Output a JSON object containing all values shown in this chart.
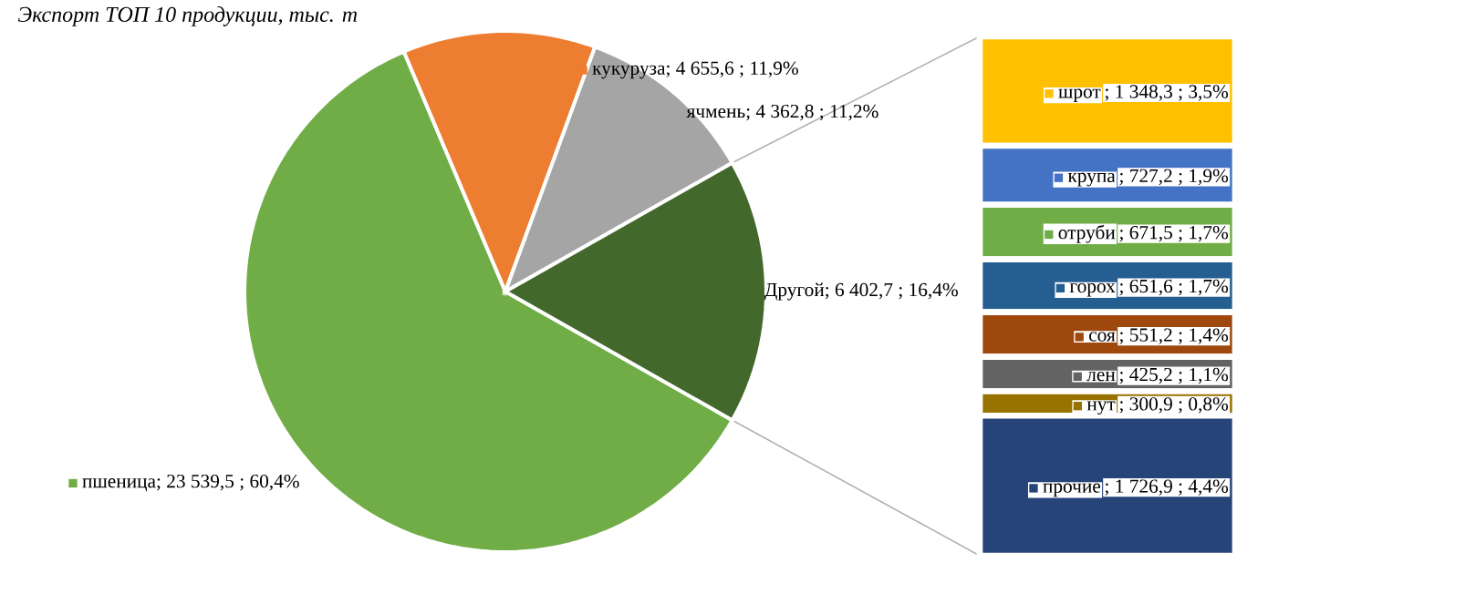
{
  "chart_data": [
    {
      "type": "pie",
      "title": "Экспорт ТОП 10 продукции, тыс. т",
      "categories": [
        "пшеница",
        "кукуруза",
        "ячмень",
        "Другой"
      ],
      "values": [
        23539.5,
        4655.6,
        4362.8,
        6402.7
      ],
      "colors": [
        "#70ad47",
        "#ed7d31",
        "#a5a5a5",
        "#43682b"
      ],
      "value_labels": [
        "; 23 539,5 ; 60,4%",
        "; 4 655,6 ; 11,9%",
        "; 4 362,8 ; 11,2%",
        "; 6 402,7 ; 16,4%"
      ],
      "legend": "left"
    },
    {
      "type": "bar",
      "stacked": true,
      "legend": "top left",
      "categories": [
        null
      ],
      "series": [
        {
          "name": "прочие",
          "color": "#264478",
          "values": [
            1726.9
          ],
          "value_labels": [
            "; 1 726,9 ; 4,4%"
          ]
        },
        {
          "name": "нут",
          "color": "#997300",
          "values": [
            300.9
          ],
          "value_labels": [
            "; 300,9 ; 0,8%"
          ]
        },
        {
          "name": "лен",
          "color": "#636363",
          "values": [
            425.2
          ],
          "value_labels": [
            "; 425,2 ; 1,1%"
          ]
        },
        {
          "name": "соя",
          "color": "#9e480e",
          "values": [
            551.2
          ],
          "value_labels": [
            "; 551,2 ; 1,4%"
          ]
        },
        {
          "name": "горох",
          "color": "#255e91",
          "values": [
            651.6
          ],
          "value_labels": [
            "; 651,6 ; 1,7%"
          ]
        },
        {
          "name": "отруби",
          "color": "#70ad47",
          "values": [
            671.5
          ],
          "value_labels": [
            "; 671,5 ; 1,7%"
          ]
        },
        {
          "name": "крупа",
          "color": "#4472c4",
          "values": [
            727.2
          ],
          "value_labels": [
            "; 727,2 ; 1,9%"
          ]
        },
        {
          "name": "шрот",
          "color": "#ffc000",
          "values": [
            1348.3
          ],
          "value_labels": [
            "; 1 348,3 ; 3,5%"
          ]
        }
      ]
    }
  ]
}
